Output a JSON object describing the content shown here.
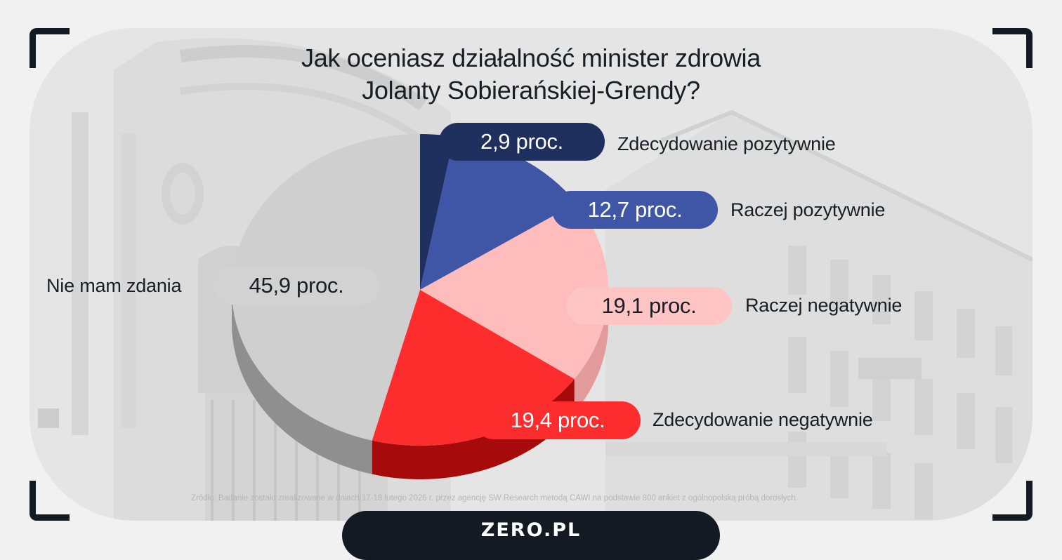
{
  "chart_data": {
    "type": "pie",
    "title_lines": [
      "Jak oceniasz działalność minister zdrowia",
      "Jolanty Sobierańskiej-Grendy?"
    ],
    "unit_suffix": " proc.",
    "slices": [
      {
        "label": "Zdecydowanie pozytywnie",
        "value": 2.9,
        "value_text": "2,9 proc.",
        "color": "#1f2f5e",
        "side_color": "#16224a",
        "pill_color": "#1f2f5e",
        "pill_text_color": "#ffffff"
      },
      {
        "label": "Raczej pozytywnie",
        "value": 12.7,
        "value_text": "12,7 proc.",
        "color": "#3f56a6",
        "side_color": "#2d3f7e",
        "pill_color": "#3f56a6",
        "pill_text_color": "#ffffff"
      },
      {
        "label": "Raczej negatywnie",
        "value": 19.1,
        "value_text": "19,1 proc.",
        "color": "#ffbcbc",
        "side_color": "#e29a9a",
        "pill_color": "#ffc4c4",
        "pill_text_color": "#1a1d26"
      },
      {
        "label": "Zdecydowanie negatywnie",
        "value": 19.4,
        "value_text": "19,4 proc.",
        "color": "#fe2d2d",
        "side_color": "#a60a0a",
        "pill_color": "#fe2d2d",
        "pill_text_color": "#ffffff"
      },
      {
        "label": "Nie mam zdania",
        "value": 45.9,
        "value_text": "45,9 proc.",
        "color": "#cfcfcf",
        "side_color": "#8f8f8f",
        "pill_color": "#d2d2d2",
        "pill_text_color": "#1a1d26"
      }
    ]
  },
  "source_note": "Źródło: Badanie zostało zrealizowane w dniach 17-18 lutego 2026 r. przez agencję SW Research metodą CAWI na podstawie 800 ankiet z ogólnopolską próbą dorosłych.",
  "brand": {
    "logo_text": "ZERO.PL",
    "accent_color": "#141a24"
  }
}
